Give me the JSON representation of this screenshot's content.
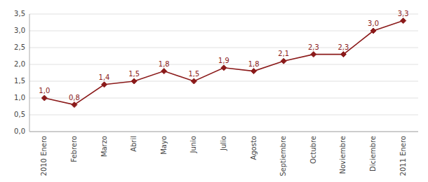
{
  "chart_data": {
    "type": "line",
    "categories": [
      "2010 Enero",
      "Febrero",
      "Marzo",
      "Abril",
      "Mayo",
      "Junio",
      "Julio",
      "Agosto",
      "Septiembre",
      "Octubre",
      "Noviembre",
      "Diciembre",
      "2011 Enero"
    ],
    "values": [
      1.0,
      0.8,
      1.4,
      1.5,
      1.8,
      1.5,
      1.9,
      1.8,
      2.1,
      2.3,
      2.3,
      3.0,
      3.3
    ],
    "value_labels": [
      "1,0",
      "0,8",
      "1,4",
      "1,5",
      "1,8",
      "1,5",
      "1,9",
      "1,8",
      "2,1",
      "2,3",
      "2,3",
      "3,0",
      "3,3"
    ],
    "data_labels": true,
    "color": "#8B1A1A",
    "marker": "diamond",
    "ylim": [
      0.0,
      3.5
    ],
    "yticks": [
      {
        "value": 0.0,
        "label": "0,0"
      },
      {
        "value": 0.5,
        "label": "0,5"
      },
      {
        "value": 1.0,
        "label": "1,0"
      },
      {
        "value": 1.5,
        "label": "1,5"
      },
      {
        "value": 2.0,
        "label": "2,0"
      },
      {
        "value": 2.5,
        "label": "2,5"
      },
      {
        "value": 3.0,
        "label": "3,0"
      },
      {
        "value": 3.5,
        "label": "3,5"
      }
    ],
    "grid": true
  }
}
